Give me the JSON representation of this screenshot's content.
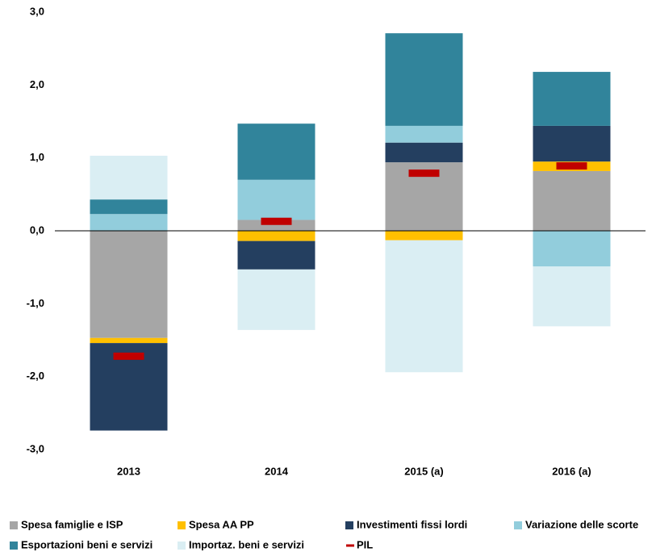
{
  "chart_data": {
    "type": "stacked-bar",
    "categories": [
      "2013",
      "2014",
      "2015 (a)",
      "2016 (a)"
    ],
    "series": [
      {
        "name": "Spesa famiglie e ISP",
        "color": "#a6a6a6",
        "values": [
          -1.47,
          0.15,
          0.94,
          0.82
        ]
      },
      {
        "name": "Spesa AA PP",
        "color": "#ffc000",
        "values": [
          -0.07,
          -0.14,
          -0.13,
          0.13
        ]
      },
      {
        "name": "Investimenti fissi lordi",
        "color": "#243f60",
        "values": [
          -1.2,
          -0.39,
          0.27,
          0.49
        ]
      },
      {
        "name": "Variazione delle scorte",
        "color": "#92cddc",
        "values": [
          0.23,
          0.55,
          0.23,
          -0.49
        ]
      },
      {
        "name": "Esportazioni beni e servizi",
        "color": "#31849b",
        "values": [
          0.2,
          0.77,
          1.27,
          0.74
        ]
      },
      {
        "name": "Importaz. beni e servizi",
        "color": "#daeef3",
        "values": [
          0.6,
          -0.83,
          -1.81,
          -0.82
        ]
      },
      {
        "name": "PIL",
        "color": "#c00000",
        "type": "marker",
        "values": [
          -1.72,
          0.13,
          0.79,
          0.89
        ]
      }
    ],
    "ylim": [
      -3,
      3
    ],
    "yticks": [
      {
        "value": -3,
        "label": "-3,0"
      },
      {
        "value": -2,
        "label": "-2,0"
      },
      {
        "value": -1,
        "label": "-1,0"
      },
      {
        "value": 0,
        "label": "0,0"
      },
      {
        "value": 1,
        "label": "1,0"
      },
      {
        "value": 2,
        "label": "2,0"
      },
      {
        "value": 3,
        "label": "3,0"
      }
    ],
    "grid": false
  }
}
